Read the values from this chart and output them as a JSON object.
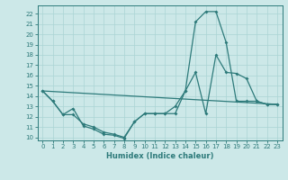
{
  "xlabel": "Humidex (Indice chaleur)",
  "background_color": "#cce8e8",
  "line_color": "#2d7a7a",
  "grid_color": "#aad4d4",
  "xlim": [
    -0.5,
    23.5
  ],
  "ylim": [
    9.7,
    22.8
  ],
  "yticks": [
    10,
    11,
    12,
    13,
    14,
    15,
    16,
    17,
    18,
    19,
    20,
    21,
    22
  ],
  "xticks": [
    0,
    1,
    2,
    3,
    4,
    5,
    6,
    7,
    8,
    9,
    10,
    11,
    12,
    13,
    14,
    15,
    16,
    17,
    18,
    19,
    20,
    21,
    22,
    23
  ],
  "line1_x": [
    0,
    1,
    2,
    3,
    4,
    5,
    6,
    7,
    8,
    9,
    10,
    11,
    12,
    13,
    14,
    15,
    16,
    17,
    18,
    19,
    20,
    21,
    22,
    23
  ],
  "line1_y": [
    14.5,
    13.5,
    12.2,
    12.8,
    11.1,
    10.8,
    10.3,
    10.2,
    9.9,
    11.5,
    12.3,
    12.3,
    12.3,
    12.3,
    14.5,
    16.3,
    12.3,
    18.0,
    16.3,
    16.2,
    15.7,
    13.5,
    13.2,
    13.2
  ],
  "line2_x": [
    0,
    1,
    2,
    3,
    4,
    5,
    6,
    7,
    8,
    9,
    10,
    11,
    12,
    13,
    14,
    15,
    16,
    17,
    18,
    19,
    20,
    21,
    22,
    23
  ],
  "line2_y": [
    14.5,
    13.5,
    12.2,
    12.2,
    11.3,
    11.0,
    10.5,
    10.3,
    10.0,
    11.5,
    12.3,
    12.3,
    12.3,
    13.0,
    14.5,
    21.2,
    22.2,
    22.2,
    19.2,
    13.5,
    13.5,
    13.5,
    13.2,
    13.2
  ],
  "line3_x": [
    0,
    23
  ],
  "line3_y": [
    14.5,
    13.2
  ]
}
